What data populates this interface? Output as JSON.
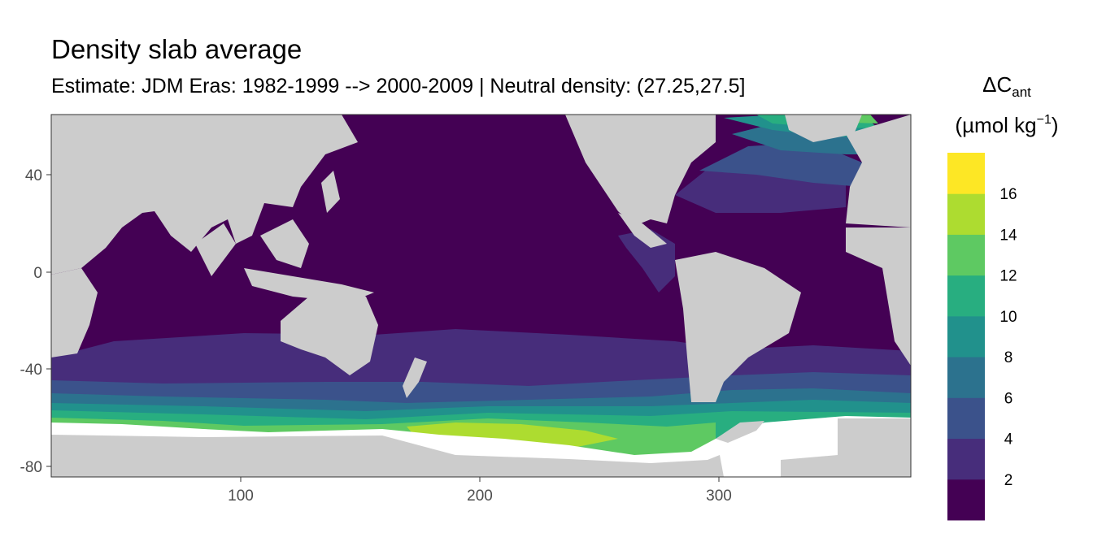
{
  "title": "Density slab average",
  "subtitle": "Estimate: JDM Eras: 1982-1999 --> 2000-2009 | Neutral density: (27.25,27.5]",
  "chart_data": {
    "type": "heatmap",
    "x_ticks": [
      100,
      200,
      300
    ],
    "y_ticks": [
      40,
      0,
      -40,
      -80
    ],
    "xlim": [
      20,
      380
    ],
    "ylim": [
      -85,
      65
    ],
    "legend": {
      "title_main": "ΔC",
      "title_sub": "ant",
      "unit_pre": "(µmol kg",
      "unit_exp": "−1",
      "unit_post": ")",
      "position": "right",
      "bins": [
        {
          "color": "#440154"
        },
        {
          "color": "#472d7b"
        },
        {
          "color": "#3b528b"
        },
        {
          "color": "#2c728e"
        },
        {
          "color": "#21918c"
        },
        {
          "color": "#28ae80"
        },
        {
          "color": "#5ec962"
        },
        {
          "color": "#addc30"
        },
        {
          "color": "#fde725"
        }
      ],
      "labels": [
        "2",
        "4",
        "6",
        "8",
        "10",
        "12",
        "14",
        "16"
      ]
    },
    "colors": {
      "land": "#cccccc",
      "nodata": "#ffffff"
    }
  }
}
